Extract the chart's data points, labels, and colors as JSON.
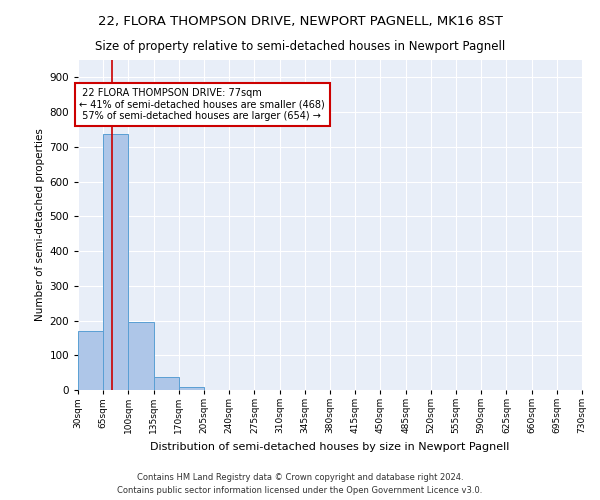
{
  "title1": "22, FLORA THOMPSON DRIVE, NEWPORT PAGNELL, MK16 8ST",
  "title2": "Size of property relative to semi-detached houses in Newport Pagnell",
  "xlabel": "Distribution of semi-detached houses by size in Newport Pagnell",
  "ylabel": "Number of semi-detached properties",
  "footer": "Contains HM Land Registry data © Crown copyright and database right 2024.\nContains public sector information licensed under the Open Government Licence v3.0.",
  "bins": [
    30,
    65,
    100,
    135,
    170,
    205,
    240,
    275,
    310,
    345,
    380,
    415,
    450,
    485,
    520,
    555,
    590,
    625,
    660,
    695,
    730
  ],
  "values": [
    170,
    738,
    197,
    38,
    10,
    0,
    0,
    0,
    0,
    0,
    0,
    0,
    0,
    0,
    0,
    0,
    0,
    0,
    0,
    0
  ],
  "bar_color": "#aec6e8",
  "bar_edge_color": "#5a9fd4",
  "property_size": 77,
  "property_label": "22 FLORA THOMPSON DRIVE: 77sqm",
  "pct_smaller": 41,
  "pct_larger": 57,
  "count_smaller": 468,
  "count_larger": 654,
  "vline_color": "#cc0000",
  "annotation_box_color": "#cc0000",
  "ylim": [
    0,
    950
  ],
  "yticks": [
    0,
    100,
    200,
    300,
    400,
    500,
    600,
    700,
    800,
    900
  ],
  "bg_color": "#e8eef8",
  "grid_color": "#ffffff",
  "title1_fontsize": 9.5,
  "title2_fontsize": 8.5,
  "xlabel_fontsize": 8,
  "ylabel_fontsize": 7.5,
  "annotation_fontsize": 7,
  "footer_fontsize": 6
}
